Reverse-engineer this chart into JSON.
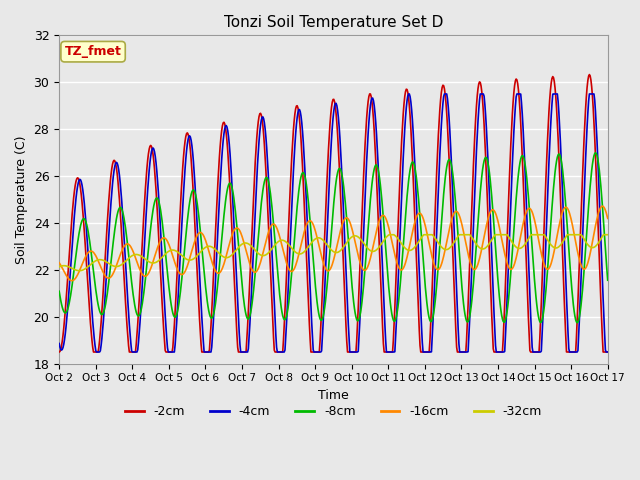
{
  "title": "Tonzi Soil Temperature Set D",
  "xlabel": "Time",
  "ylabel": "Soil Temperature (C)",
  "ylim": [
    18,
    32
  ],
  "xlim": [
    0,
    360
  ],
  "xtick_labels": [
    "Oct 2",
    "Oct 3",
    "Oct 4",
    "Oct 5",
    "Oct 6",
    "Oct 7",
    "Oct 8",
    "Oct 9",
    "Oct 10",
    "Oct 11",
    "Oct 12",
    "Oct 13",
    "Oct 14",
    "Oct 15",
    "Oct 16",
    "Oct 17"
  ],
  "ytick_values": [
    18,
    20,
    22,
    24,
    26,
    28,
    30,
    32
  ],
  "legend_labels": [
    "-2cm",
    "-4cm",
    "-8cm",
    "-16cm",
    "-32cm"
  ],
  "legend_colors": [
    "#cc0000",
    "#0000cc",
    "#00bb00",
    "#ff8800",
    "#cccc00"
  ],
  "annotation_text": "TZ_fmet",
  "annotation_color": "#cc0000",
  "annotation_bg": "#ffffcc",
  "line_colors": [
    "#cc0000",
    "#0000cc",
    "#00bb00",
    "#ff8800",
    "#cccc00"
  ],
  "bg_color": "#e8e8e8",
  "plot_bg": "#e8e8e8",
  "grid_color": "#ffffff",
  "n_points": 720
}
